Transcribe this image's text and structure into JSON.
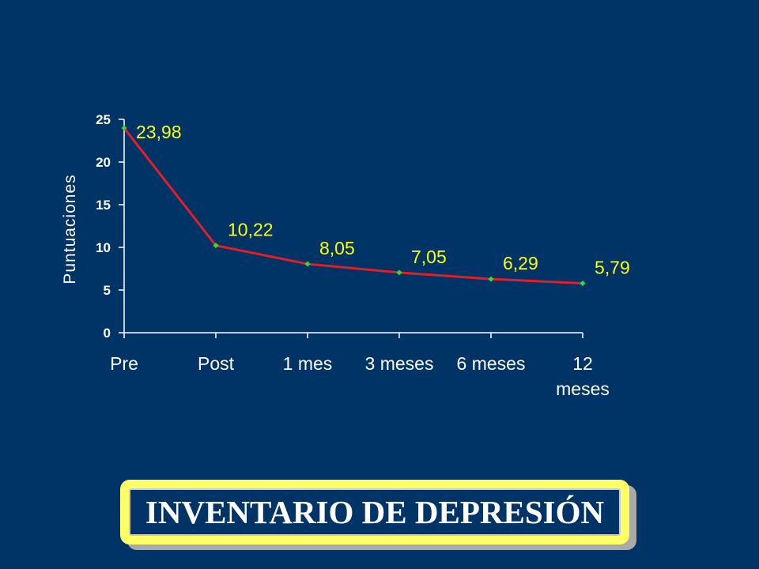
{
  "slide_title": "INVENTARIO DE DEPRESIÓN",
  "colors": {
    "background": "#003366",
    "line": "#e41e26",
    "marker": "#33dd33",
    "data_label": "#ffff00",
    "axis": "#ffffff",
    "title_frame": "#ffff66"
  },
  "chart_data": {
    "type": "line",
    "categories": [
      "Pre",
      "Post",
      "1 mes",
      "3 meses",
      "6 meses",
      "12 meses"
    ],
    "category_display": [
      [
        "Pre"
      ],
      [
        "Post"
      ],
      [
        "1 mes"
      ],
      [
        "3 meses"
      ],
      [
        "6 meses"
      ],
      [
        "12",
        "meses"
      ]
    ],
    "values": [
      23.98,
      10.22,
      8.05,
      7.05,
      6.29,
      5.79
    ],
    "data_labels": [
      "23,98",
      "10,22",
      "8,05",
      "7,05",
      "6,29",
      "5,79"
    ],
    "ylabel": "Puntuaciones",
    "xlabel": "",
    "ylim": [
      0,
      25
    ],
    "yticks": [
      0,
      5,
      10,
      15,
      20,
      25
    ],
    "grid": false,
    "legend": "none"
  }
}
